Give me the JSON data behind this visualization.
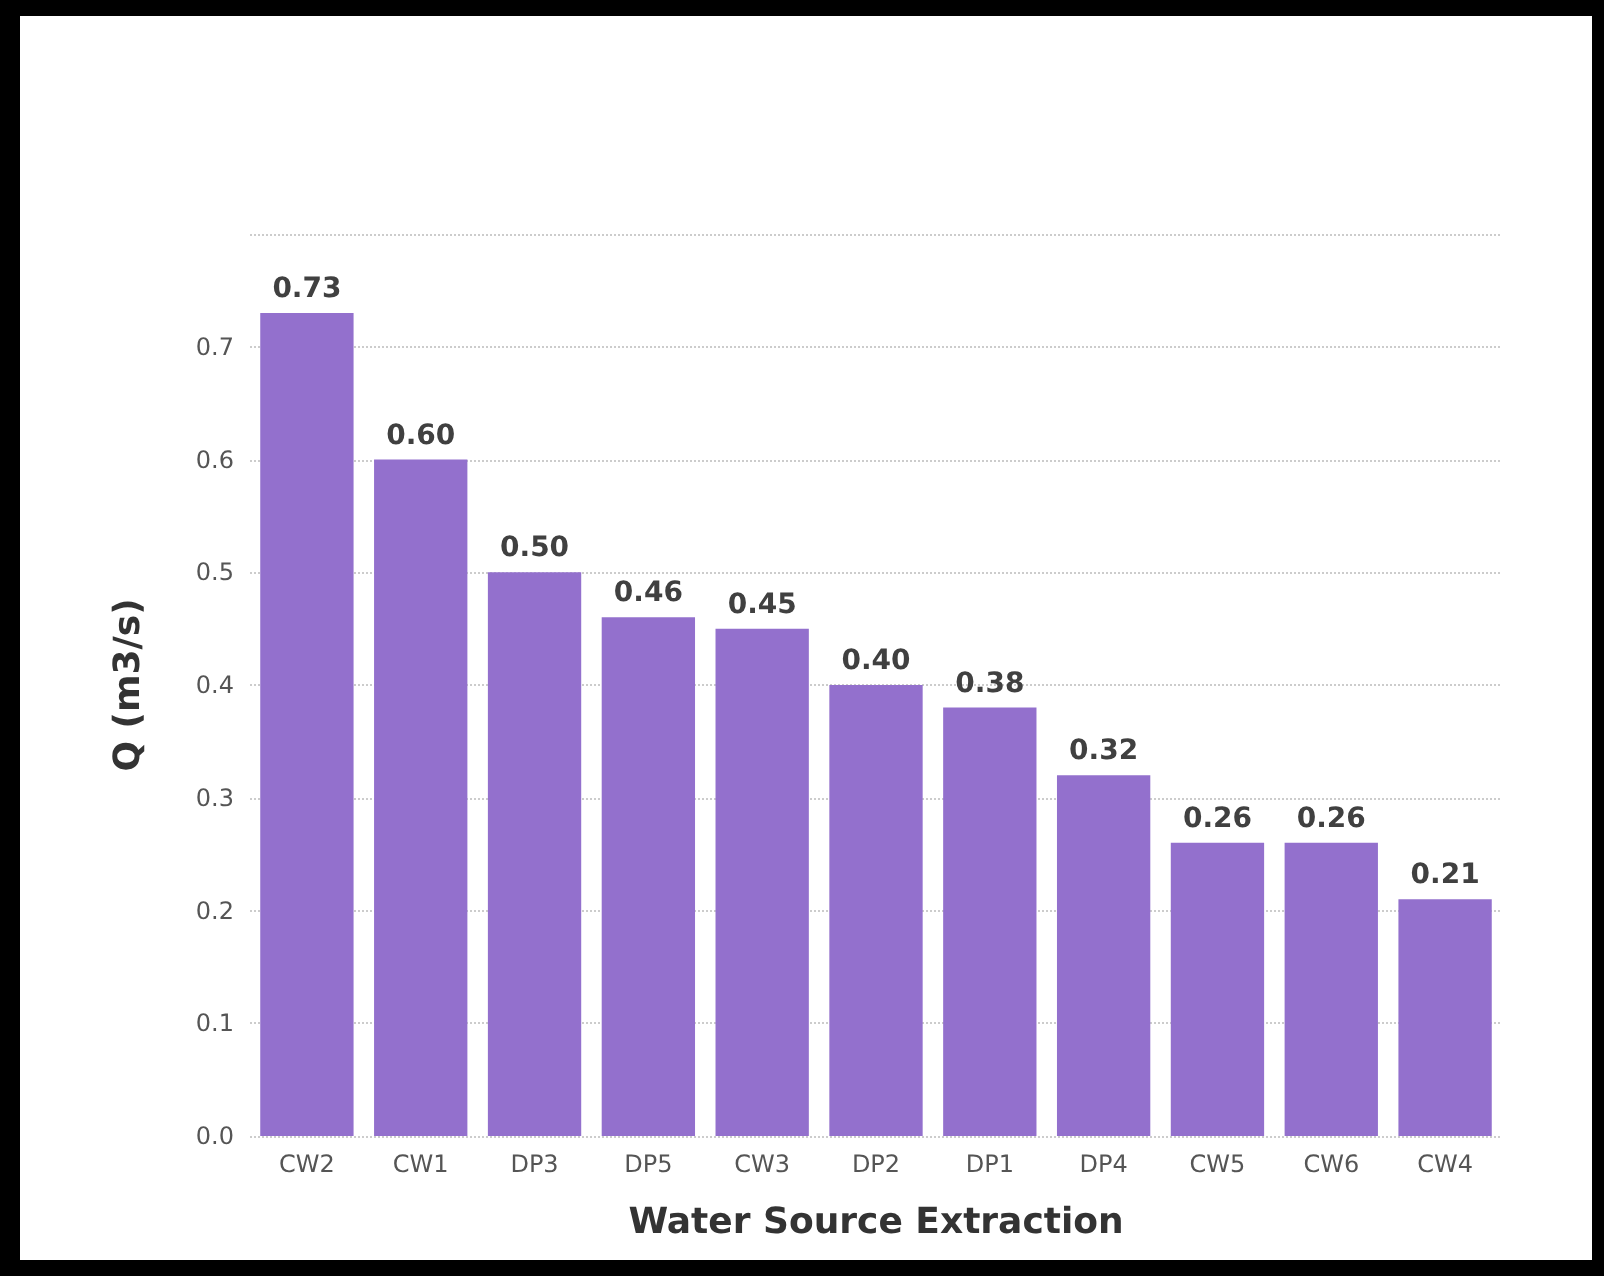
{
  "chart_data": {
    "type": "bar",
    "xlabel": "Water Source Extraction",
    "ylabel": "Q (m3/s)",
    "categories": [
      "CW2",
      "CW1",
      "DP3",
      "DP5",
      "CW3",
      "DP2",
      "DP1",
      "DP4",
      "CW5",
      "CW6",
      "CW4"
    ],
    "values": [
      0.73,
      0.6,
      0.5,
      0.46,
      0.45,
      0.4,
      0.38,
      0.32,
      0.26,
      0.26,
      0.21
    ],
    "value_labels": [
      "0.73",
      "0.60",
      "0.50",
      "0.46",
      "0.45",
      "0.40",
      "0.38",
      "0.32",
      "0.26",
      "0.26",
      "0.21"
    ],
    "color": "#9370cd",
    "ylim": [
      0,
      0.8
    ],
    "yticks": [
      {
        "value": 0,
        "label": "0.0"
      },
      0.1,
      0.2,
      0.3,
      0.4,
      0.5,
      0.6,
      0.7,
      {
        "value": 0.8,
        "label": null
      }
    ],
    "grid": "y"
  }
}
